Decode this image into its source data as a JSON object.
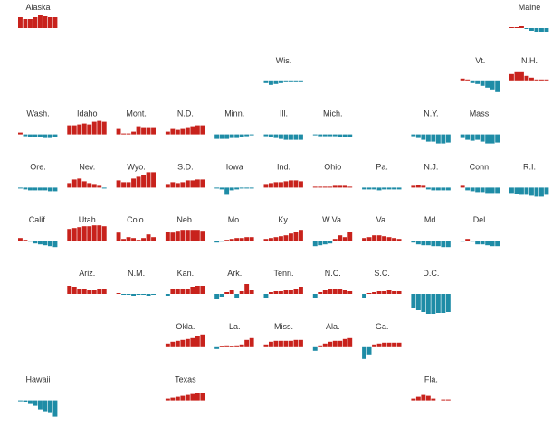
{
  "chart_data": {
    "type": "tile-bar-map",
    "positive_color": "#c8221c",
    "negative_color": "#1e8ca6",
    "tiles": [
      {
        "name": "Alaska",
        "values": [
          12,
          10,
          10,
          12,
          14,
          13,
          12,
          12
        ]
      },
      {
        "name": "Maine",
        "values": [
          1,
          1,
          2,
          -1,
          -3,
          -4,
          -4,
          -4
        ]
      },
      {
        "name": "Wis.",
        "values": [
          -2,
          -4,
          -3,
          -2,
          -1,
          -1,
          -1,
          -1
        ]
      },
      {
        "name": "Vt.",
        "values": [
          3,
          2,
          -2,
          -3,
          -5,
          -7,
          -9,
          -12
        ]
      },
      {
        "name": "N.H.",
        "values": [
          8,
          10,
          10,
          6,
          4,
          2,
          2,
          2
        ]
      },
      {
        "name": "Wash.",
        "values": [
          2,
          -2,
          -3,
          -3,
          -3,
          -4,
          -4,
          -3
        ]
      },
      {
        "name": "Idaho",
        "values": [
          10,
          10,
          11,
          12,
          11,
          14,
          15,
          14
        ]
      },
      {
        "name": "Mont.",
        "values": [
          6,
          1,
          1,
          3,
          9,
          8,
          8,
          8
        ]
      },
      {
        "name": "N.D.",
        "values": [
          3,
          6,
          5,
          6,
          8,
          9,
          10,
          10
        ]
      },
      {
        "name": "Minn.",
        "values": [
          -5,
          -5,
          -5,
          -4,
          -4,
          -3,
          -2,
          -1
        ]
      },
      {
        "name": "Ill.",
        "values": [
          -2,
          -3,
          -4,
          -5,
          -6,
          -6,
          -6,
          -6
        ]
      },
      {
        "name": "Mich.",
        "values": [
          -1,
          -2,
          -2,
          -2,
          -2,
          -3,
          -3,
          -3
        ]
      },
      {
        "name": "N.Y.",
        "values": [
          -2,
          -4,
          -6,
          -8,
          -8,
          -10,
          -10,
          -9
        ]
      },
      {
        "name": "Mass.",
        "values": [
          -4,
          -6,
          -7,
          -6,
          -8,
          -10,
          -10,
          -9
        ]
      },
      {
        "name": "Ore.",
        "values": [
          -1,
          -2,
          -3,
          -3,
          -3,
          -3,
          -4,
          -4
        ]
      },
      {
        "name": "Nev.",
        "values": [
          5,
          9,
          10,
          7,
          5,
          4,
          2,
          -1
        ]
      },
      {
        "name": "Wyo.",
        "values": [
          8,
          6,
          6,
          10,
          12,
          14,
          17,
          17
        ]
      },
      {
        "name": "S.D.",
        "values": [
          4,
          6,
          5,
          6,
          8,
          8,
          9,
          9
        ]
      },
      {
        "name": "Iowa",
        "values": [
          -1,
          -2,
          -8,
          -3,
          -2,
          -1,
          -1,
          -1
        ]
      },
      {
        "name": "Ind.",
        "values": [
          4,
          5,
          6,
          6,
          7,
          8,
          8,
          7
        ]
      },
      {
        "name": "Ohio",
        "values": [
          1,
          1,
          1,
          1,
          2,
          2,
          2,
          1
        ]
      },
      {
        "name": "Pa.",
        "values": [
          -2,
          -2,
          -2,
          -3,
          -2,
          -2,
          -2,
          -2
        ]
      },
      {
        "name": "N.J.",
        "values": [
          2,
          3,
          2,
          -2,
          -3,
          -3,
          -3,
          -3
        ]
      },
      {
        "name": "Conn.",
        "values": [
          2,
          -3,
          -4,
          -5,
          -5,
          -6,
          -6,
          -6
        ]
      },
      {
        "name": "R.I.",
        "values": [
          -6,
          -7,
          -8,
          -8,
          -9,
          -10,
          -10,
          -8
        ]
      },
      {
        "name": "Calif.",
        "values": [
          3,
          1,
          -1,
          -3,
          -4,
          -5,
          -6,
          -7
        ]
      },
      {
        "name": "Utah",
        "values": [
          13,
          14,
          15,
          16,
          16,
          17,
          17,
          16
        ]
      },
      {
        "name": "Colo.",
        "values": [
          9,
          2,
          4,
          3,
          1,
          3,
          7,
          4
        ]
      },
      {
        "name": "Neb.",
        "values": [
          10,
          9,
          11,
          12,
          12,
          12,
          12,
          11
        ]
      },
      {
        "name": "Mo.",
        "values": [
          -2,
          -1,
          1,
          2,
          3,
          3,
          4,
          4
        ]
      },
      {
        "name": "Ky.",
        "values": [
          2,
          3,
          4,
          5,
          6,
          8,
          10,
          12
        ]
      },
      {
        "name": "W.Va.",
        "values": [
          -6,
          -5,
          -4,
          -3,
          2,
          6,
          4,
          10
        ]
      },
      {
        "name": "Va.",
        "values": [
          3,
          4,
          6,
          6,
          5,
          4,
          3,
          2
        ]
      },
      {
        "name": "Md.",
        "values": [
          -2,
          -4,
          -5,
          -5,
          -6,
          -6,
          -7,
          -7
        ]
      },
      {
        "name": "Del.",
        "values": [
          -1,
          2,
          -1,
          -4,
          -4,
          -5,
          -6,
          -6
        ]
      },
      {
        "name": "Ariz.",
        "values": [
          9,
          8,
          6,
          5,
          4,
          4,
          6,
          6
        ]
      },
      {
        "name": "N.M.",
        "values": [
          1,
          -1,
          -1,
          -2,
          -1,
          -1,
          -2,
          -1
        ]
      },
      {
        "name": "Kan.",
        "values": [
          -2,
          5,
          6,
          5,
          6,
          8,
          9,
          9
        ]
      },
      {
        "name": "Ark.",
        "values": [
          -6,
          -3,
          2,
          4,
          -4,
          3,
          11,
          4
        ]
      },
      {
        "name": "Tenn.",
        "values": [
          -5,
          2,
          3,
          3,
          4,
          4,
          6,
          8
        ]
      },
      {
        "name": "N.C.",
        "values": [
          -4,
          2,
          4,
          5,
          6,
          5,
          4,
          3
        ]
      },
      {
        "name": "S.C.",
        "values": [
          -5,
          1,
          2,
          3,
          3,
          4,
          3,
          3
        ]
      },
      {
        "name": "D.C.",
        "values": [
          -16,
          -18,
          -20,
          -22,
          -22,
          -21,
          -21,
          -20
        ]
      },
      {
        "name": "Okla.",
        "values": [
          4,
          6,
          7,
          8,
          9,
          10,
          12,
          14
        ]
      },
      {
        "name": "La.",
        "values": [
          -2,
          1,
          2,
          1,
          2,
          3,
          8,
          10
        ]
      },
      {
        "name": "Miss.",
        "values": [
          3,
          6,
          7,
          7,
          7,
          7,
          8,
          8
        ]
      },
      {
        "name": "Ala.",
        "values": [
          -4,
          2,
          4,
          6,
          7,
          7,
          9,
          10
        ]
      },
      {
        "name": "Ga.",
        "values": [
          -13,
          -8,
          3,
          4,
          5,
          5,
          5,
          5
        ]
      },
      {
        "name": "Hawaii",
        "values": [
          -1,
          -2,
          -4,
          -6,
          -10,
          -12,
          -14,
          -18
        ]
      },
      {
        "name": "Texas",
        "values": [
          2,
          3,
          4,
          5,
          6,
          7,
          8,
          8
        ]
      },
      {
        "name": "Fla.",
        "values": [
          2,
          4,
          6,
          5,
          2,
          0,
          1,
          1
        ]
      }
    ]
  }
}
